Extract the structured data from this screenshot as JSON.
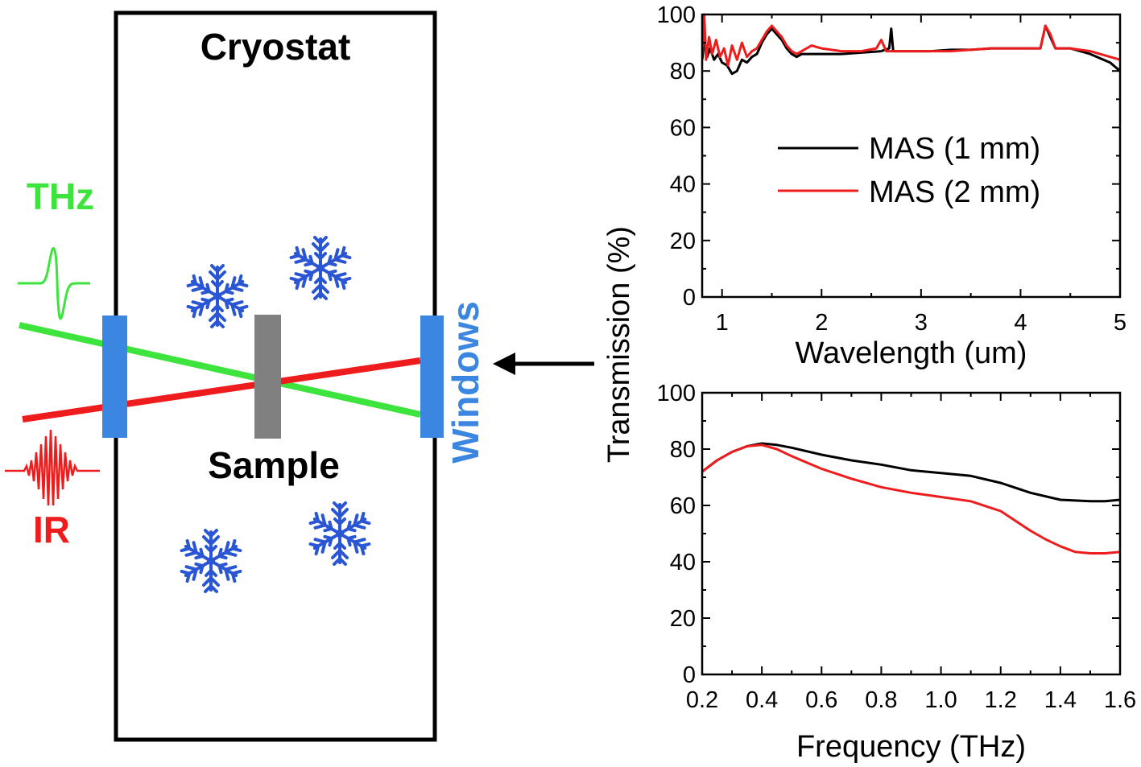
{
  "diagram": {
    "cryostat_label": "Cryostat",
    "sample_label": "Sample",
    "windows_label": "Windows",
    "thz_label": "THz",
    "ir_label": "IR",
    "colors": {
      "thz": "#3ee43e",
      "ir": "#ee1c1c",
      "windows": "#3a86e0",
      "sample": "#808080",
      "snowflake": "#2a56d4"
    },
    "snowflake_icon": "snowflake-icon",
    "arrow_icon": "arrow-left-icon"
  },
  "chart_data": [
    {
      "type": "line",
      "title": "",
      "xlabel": "Wavelength (um)",
      "ylabel": "Transmission (%)",
      "xlim": [
        0.8,
        5
      ],
      "ylim": [
        0,
        100
      ],
      "xticks": [
        "1",
        "2",
        "3",
        "4",
        "5"
      ],
      "yticks": [
        "0",
        "20",
        "40",
        "60",
        "80",
        "100"
      ],
      "legend_position": "center-right",
      "series": [
        {
          "name": "MAS (1 mm)",
          "color": "#000000",
          "x": [
            0.8,
            0.82,
            0.85,
            0.88,
            0.92,
            0.96,
            1.0,
            1.05,
            1.1,
            1.15,
            1.2,
            1.25,
            1.3,
            1.35,
            1.4,
            1.45,
            1.5,
            1.55,
            1.6,
            1.65,
            1.7,
            1.75,
            1.8,
            1.9,
            2.0,
            2.2,
            2.4,
            2.6,
            2.68,
            2.7,
            2.72,
            2.75,
            2.9,
            3.1,
            3.3,
            3.5,
            3.7,
            3.9,
            4.1,
            4.2,
            4.25,
            4.3,
            4.35,
            4.5,
            4.7,
            4.9,
            5.0
          ],
          "y": [
            84,
            90,
            85,
            88,
            84,
            86,
            83,
            82,
            79,
            80,
            84,
            83,
            85,
            86,
            90,
            93,
            95,
            93,
            91,
            88,
            86,
            85,
            86,
            86,
            86,
            86,
            86.5,
            87,
            88,
            95,
            87,
            87,
            87,
            87,
            87.5,
            87.5,
            88,
            88,
            88,
            88,
            96,
            92,
            88,
            88,
            86,
            83,
            80
          ]
        },
        {
          "name": "MAS (2 mm)",
          "color": "#ee1c1c",
          "x": [
            0.8,
            0.82,
            0.84,
            0.87,
            0.9,
            0.94,
            0.98,
            1.02,
            1.06,
            1.1,
            1.15,
            1.2,
            1.25,
            1.3,
            1.35,
            1.4,
            1.45,
            1.5,
            1.55,
            1.6,
            1.65,
            1.7,
            1.75,
            1.8,
            1.9,
            2.0,
            2.2,
            2.4,
            2.55,
            2.6,
            2.65,
            2.75,
            2.9,
            3.1,
            3.3,
            3.5,
            3.7,
            3.9,
            4.1,
            4.2,
            4.25,
            4.3,
            4.35,
            4.5,
            4.7,
            4.9,
            5.0
          ],
          "y": [
            86,
            100,
            84,
            92,
            86,
            91,
            85,
            88,
            82,
            89,
            84,
            90,
            85,
            87,
            88,
            91,
            94,
            96,
            94,
            92,
            89,
            87,
            86,
            87,
            89,
            88,
            87,
            87,
            88,
            91,
            87,
            87,
            87,
            87,
            87,
            87.5,
            88,
            88,
            88,
            88,
            96,
            93,
            88,
            88,
            87,
            85,
            84
          ]
        }
      ]
    },
    {
      "type": "line",
      "title": "",
      "xlabel": "Frequency (THz)",
      "ylabel": "Transmission (%)",
      "xlim": [
        0.2,
        1.6
      ],
      "ylim": [
        0,
        100
      ],
      "xticks": [
        "0.2",
        "0.4",
        "0.6",
        "0.8",
        "1.0",
        "1.2",
        "1.4",
        "1.6"
      ],
      "yticks": [
        "0",
        "20",
        "40",
        "60",
        "80",
        "100"
      ],
      "series": [
        {
          "name": "MAS (1 mm)",
          "color": "#000000",
          "x": [
            0.2,
            0.25,
            0.3,
            0.35,
            0.4,
            0.45,
            0.5,
            0.6,
            0.7,
            0.8,
            0.9,
            1.0,
            1.1,
            1.2,
            1.3,
            1.4,
            1.5,
            1.55,
            1.6
          ],
          "y": [
            72,
            76,
            79,
            81,
            82,
            81.5,
            80.5,
            78,
            76,
            74.5,
            72.5,
            71.5,
            70.5,
            68,
            64.5,
            62,
            61.5,
            61.5,
            62
          ]
        },
        {
          "name": "MAS (2 mm)",
          "color": "#ee1c1c",
          "x": [
            0.2,
            0.25,
            0.3,
            0.35,
            0.4,
            0.45,
            0.5,
            0.6,
            0.7,
            0.8,
            0.9,
            1.0,
            1.1,
            1.2,
            1.3,
            1.35,
            1.4,
            1.45,
            1.5,
            1.55,
            1.6
          ],
          "y": [
            72,
            76,
            79,
            81,
            81.5,
            80,
            77.5,
            73,
            69.5,
            66.5,
            64.5,
            63,
            61.5,
            58,
            51,
            48,
            45.5,
            43.5,
            43,
            43,
            43.5
          ]
        }
      ]
    }
  ]
}
